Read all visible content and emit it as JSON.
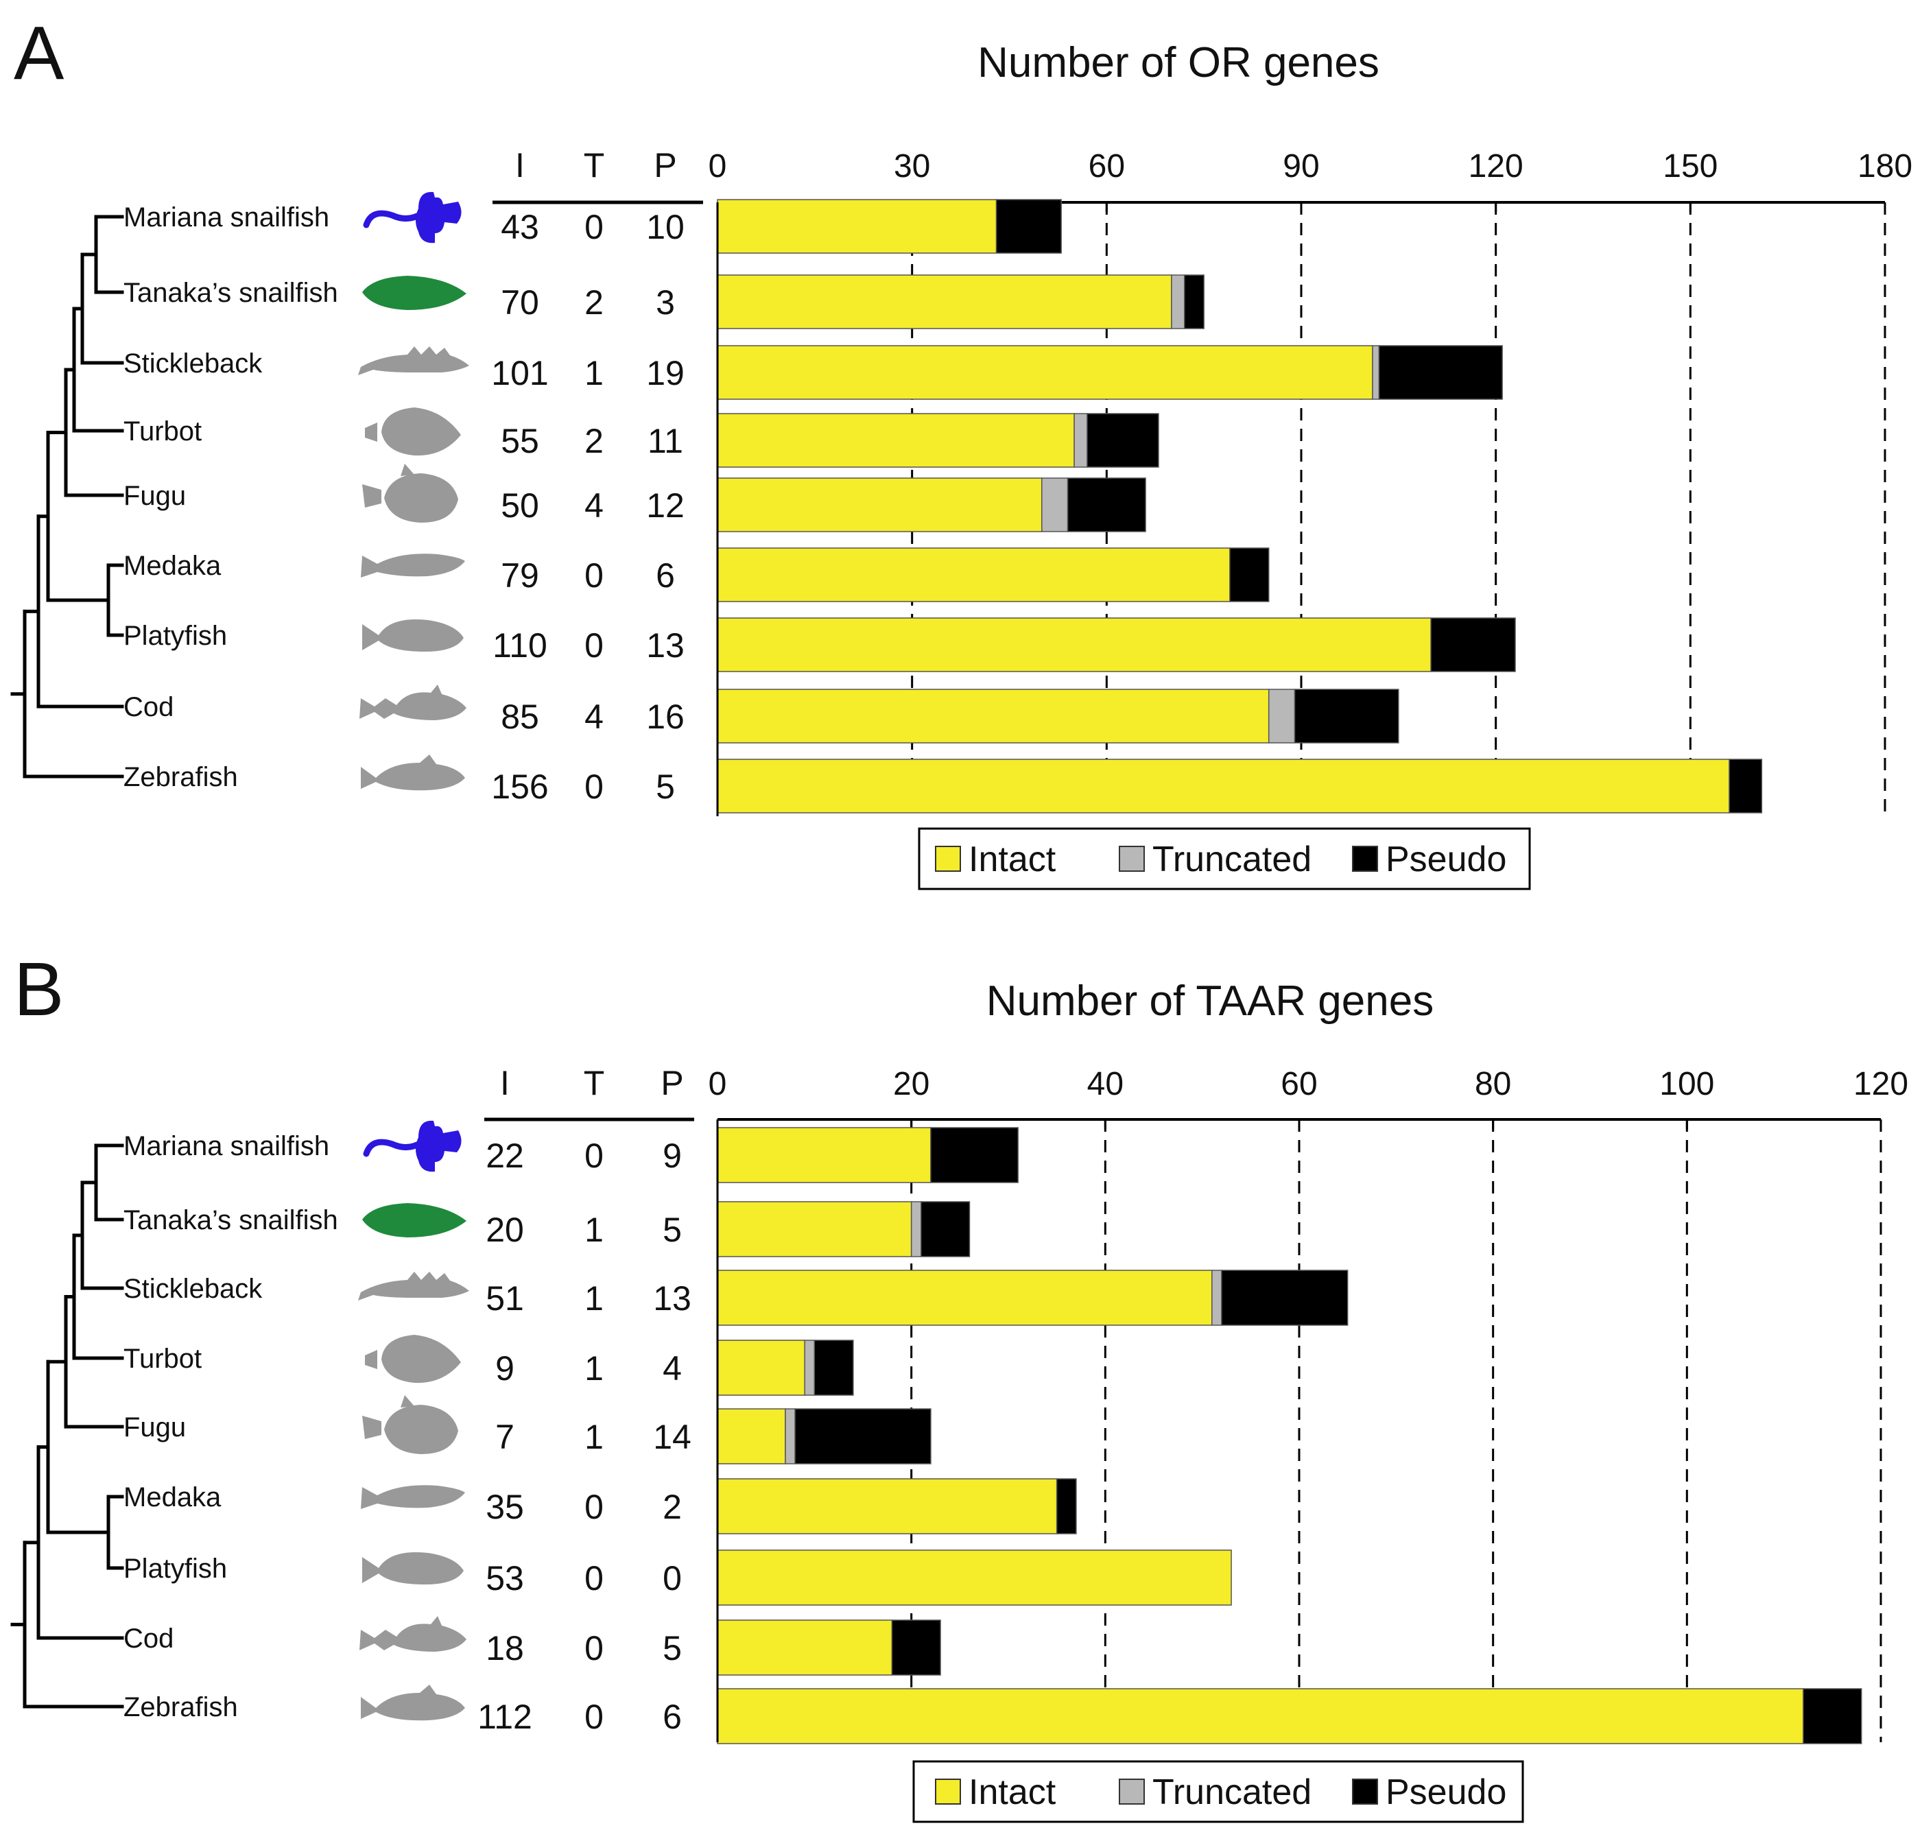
{
  "colors": {
    "intact": "#f5ec2a",
    "truncated": "#b8b8b8",
    "pseudo": "#000000",
    "mariana_icon": "#2d16e0",
    "tanaka_icon": "#1f8a3c",
    "silhouette": "#999999"
  },
  "column_headers": [
    "I",
    "T",
    "P"
  ],
  "species": [
    "Mariana snailfish",
    "Tanaka’s snailfish",
    "Stickleback",
    "Turbot",
    "Fugu",
    "Medaka",
    "Platyfish",
    "Cod",
    "Zebrafish"
  ],
  "legend": {
    "intact": "Intact",
    "truncated": "Truncated",
    "pseudo": "Pseudo"
  },
  "chart_data": [
    {
      "panel": "A",
      "type": "bar",
      "orientation": "horizontal",
      "stacked": true,
      "title": "Number of OR genes",
      "xlim": [
        0,
        180
      ],
      "ticks": [
        0,
        30,
        60,
        90,
        120,
        150,
        180
      ],
      "grid": "dashed vertical",
      "legend_position": "bottom-center",
      "categories": [
        "Mariana snailfish",
        "Tanaka’s snailfish",
        "Stickleback",
        "Turbot",
        "Fugu",
        "Medaka",
        "Platyfish",
        "Cod",
        "Zebrafish"
      ],
      "series": [
        {
          "name": "Intact",
          "values": [
            43,
            70,
            101,
            55,
            50,
            79,
            110,
            85,
            156
          ]
        },
        {
          "name": "Truncated",
          "values": [
            0,
            2,
            1,
            2,
            4,
            0,
            0,
            4,
            0
          ]
        },
        {
          "name": "Pseudo",
          "values": [
            10,
            3,
            19,
            11,
            12,
            6,
            13,
            16,
            5
          ]
        }
      ]
    },
    {
      "panel": "B",
      "type": "bar",
      "orientation": "horizontal",
      "stacked": true,
      "title": "Number of TAAR genes",
      "xlim": [
        0,
        120
      ],
      "ticks": [
        0,
        20,
        40,
        60,
        80,
        100,
        120
      ],
      "grid": "dashed vertical",
      "legend_position": "bottom-center",
      "categories": [
        "Mariana snailfish",
        "Tanaka’s snailfish",
        "Stickleback",
        "Turbot",
        "Fugu",
        "Medaka",
        "Platyfish",
        "Cod",
        "Zebrafish"
      ],
      "series": [
        {
          "name": "Intact",
          "values": [
            22,
            20,
            51,
            9,
            7,
            35,
            53,
            18,
            112
          ]
        },
        {
          "name": "Truncated",
          "values": [
            0,
            1,
            1,
            1,
            1,
            0,
            0,
            0,
            0
          ]
        },
        {
          "name": "Pseudo",
          "values": [
            9,
            5,
            13,
            4,
            14,
            2,
            0,
            5,
            6
          ]
        }
      ]
    }
  ]
}
